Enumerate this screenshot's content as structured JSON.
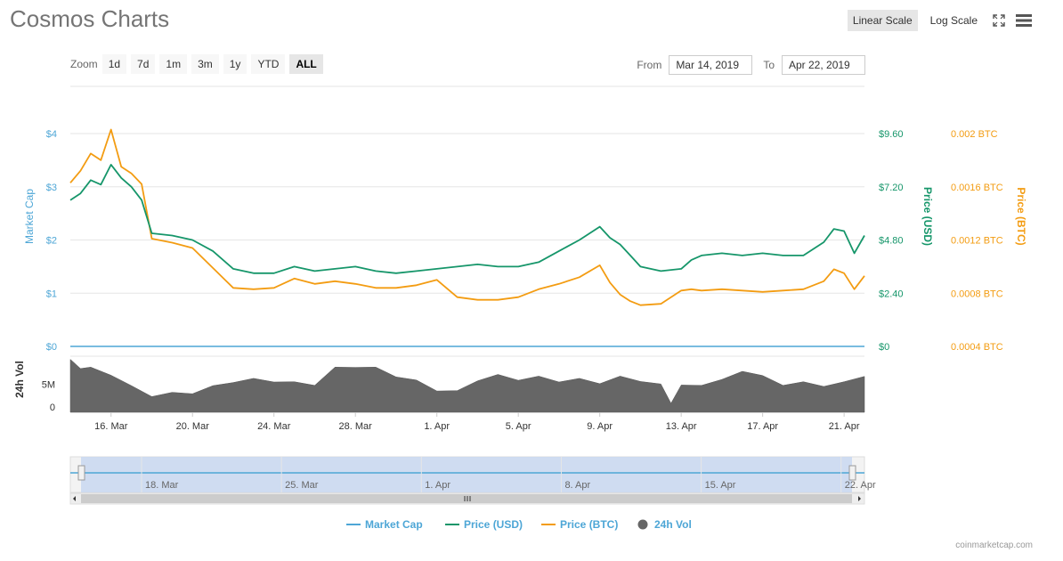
{
  "title": "Cosmos Charts",
  "scale_toggle": {
    "linear": "Linear Scale",
    "log": "Log Scale",
    "active": "linear"
  },
  "icons": {
    "fullscreen": "fullscreen-icon",
    "menu": "hamburger-menu-icon"
  },
  "zoom": {
    "label": "Zoom",
    "buttons": [
      "1d",
      "7d",
      "1m",
      "3m",
      "1y",
      "YTD",
      "ALL"
    ],
    "active": "ALL"
  },
  "range": {
    "from_label": "From",
    "from_value": "Mar 14, 2019",
    "to_label": "To",
    "to_value": "Apr 22, 2019"
  },
  "credit": "coinmarketcap.com",
  "colors": {
    "market_cap": "#4da6d6",
    "price_usd": "#16966a",
    "price_btc": "#f39c12",
    "volume": "#666666",
    "navigator_fill": "#c8d7f0"
  },
  "chart_data": {
    "type": "line",
    "x_tick_labels": [
      "16. Mar",
      "20. Mar",
      "24. Mar",
      "28. Mar",
      "1. Apr",
      "5. Apr",
      "9. Apr",
      "13. Apr",
      "17. Apr",
      "21. Apr"
    ],
    "navigator_tick_labels": [
      "18. Mar",
      "25. Mar",
      "1. Apr",
      "8. Apr",
      "15. Apr",
      "22. Apr"
    ],
    "x_range": [
      "2019-03-14",
      "2019-04-22"
    ],
    "axes": {
      "market_cap": {
        "label": "Market Cap",
        "ticks": [
          "$0",
          "$1",
          "$2",
          "$3",
          "$4"
        ],
        "range": [
          0,
          4
        ]
      },
      "price_usd": {
        "label": "Price (USD)",
        "ticks": [
          "$0",
          "$2.40",
          "$4.80",
          "$7.20",
          "$9.60"
        ],
        "range": [
          0,
          9.6
        ]
      },
      "price_btc": {
        "label": "Price (BTC)",
        "ticks": [
          "0.0004 BTC",
          "0.0008 BTC",
          "0.0012 BTC",
          "0.0016 BTC",
          "0.002 BTC"
        ],
        "range": [
          0.0004,
          0.002
        ]
      },
      "volume": {
        "label": "24h Vol",
        "ticks": [
          "0",
          "5M"
        ],
        "range": [
          0,
          10
        ]
      }
    },
    "legend": {
      "placement": "bottom-center",
      "items": [
        "Market Cap",
        "Price (USD)",
        "Price (BTC)",
        "24h Vol"
      ]
    },
    "series": [
      {
        "name": "Market Cap",
        "x": [
          14,
          53
        ],
        "values": [
          0,
          0
        ]
      },
      {
        "name": "Price (USD)",
        "x": [
          14,
          14.5,
          15,
          15.5,
          16,
          16.5,
          17,
          17.5,
          18,
          19,
          20,
          21,
          22,
          23,
          24,
          25,
          26,
          27,
          28,
          29,
          30,
          31,
          32,
          33,
          34,
          35,
          36,
          37,
          38,
          39,
          40,
          40.5,
          41,
          41.5,
          42,
          43,
          44,
          44.5,
          45,
          46,
          47,
          48,
          49,
          50,
          51,
          51.5,
          52,
          52.5,
          53
        ],
        "values": [
          6.6,
          6.9,
          7.5,
          7.3,
          8.2,
          7.6,
          7.2,
          6.6,
          5.1,
          5.0,
          4.8,
          4.3,
          3.5,
          3.3,
          3.3,
          3.6,
          3.4,
          3.5,
          3.6,
          3.4,
          3.3,
          3.4,
          3.5,
          3.6,
          3.7,
          3.6,
          3.6,
          3.8,
          4.3,
          4.8,
          5.4,
          4.9,
          4.6,
          4.1,
          3.6,
          3.4,
          3.5,
          3.9,
          4.1,
          4.2,
          4.1,
          4.2,
          4.1,
          4.1,
          4.7,
          5.3,
          5.2,
          4.2,
          5.0
        ]
      },
      {
        "name": "Price (BTC)",
        "x": [
          14,
          14.5,
          15,
          15.5,
          16,
          16.5,
          17,
          17.5,
          18,
          19,
          20,
          21,
          22,
          23,
          24,
          25,
          26,
          27,
          28,
          29,
          30,
          31,
          32,
          33,
          34,
          35,
          36,
          37,
          38,
          39,
          40,
          40.5,
          41,
          41.5,
          42,
          43,
          44,
          44.5,
          45,
          46,
          47,
          48,
          49,
          50,
          51,
          51.5,
          52,
          52.5,
          53
        ],
        "values": [
          0.00163,
          0.00172,
          0.00185,
          0.0018,
          0.00203,
          0.00175,
          0.0017,
          0.00162,
          0.00121,
          0.00118,
          0.00114,
          0.00099,
          0.00084,
          0.00083,
          0.00084,
          0.00091,
          0.00087,
          0.00089,
          0.00087,
          0.00084,
          0.00084,
          0.00086,
          0.0009,
          0.00077,
          0.00075,
          0.00075,
          0.00077,
          0.00083,
          0.00087,
          0.00092,
          0.00101,
          0.00088,
          0.00079,
          0.00074,
          0.00071,
          0.00072,
          0.00082,
          0.00083,
          0.00082,
          0.00083,
          0.00082,
          0.00081,
          0.00082,
          0.00083,
          0.00089,
          0.00098,
          0.00095,
          0.00083,
          0.00093
        ]
      },
      {
        "name": "24h Vol",
        "x": [
          14,
          14.5,
          15,
          16,
          17,
          18,
          19,
          20,
          21,
          22,
          23,
          24,
          25,
          26,
          27,
          28,
          29,
          30,
          31,
          32,
          33,
          34,
          35,
          36,
          37,
          38,
          39,
          40,
          41,
          42,
          43,
          43.5,
          44,
          45,
          46,
          47,
          48,
          49,
          50,
          51,
          52,
          53
        ],
        "values": [
          9.2,
          8.0,
          7.8,
          6.8,
          4.5,
          3.0,
          3.3,
          3.5,
          4.5,
          5.5,
          5.8,
          5.6,
          5.2,
          5.0,
          7.8,
          8.2,
          7.8,
          6.5,
          5.5,
          4.0,
          3.6,
          5.8,
          6.5,
          5.9,
          6.2,
          5.6,
          5.8,
          5.3,
          6.2,
          5.7,
          4.8,
          1.8,
          4.6,
          5.0,
          5.6,
          7.5,
          6.3,
          5.0,
          5.2,
          4.8,
          5.2,
          6.6
        ]
      }
    ]
  }
}
